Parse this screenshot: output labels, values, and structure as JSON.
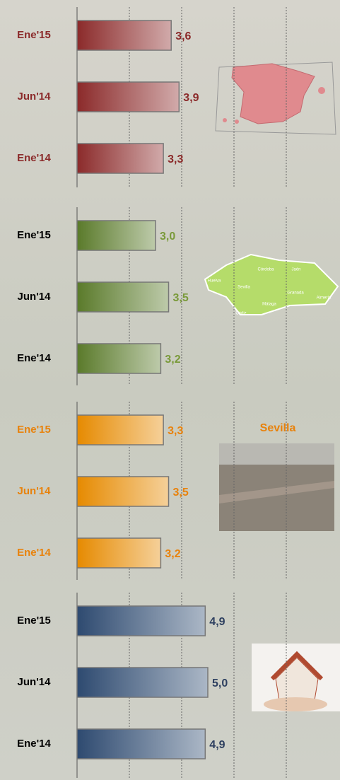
{
  "chart_data": [
    {
      "type": "bar",
      "orientation": "horizontal",
      "categories": [
        "Ene'15",
        "Jun'14",
        "Ene'14"
      ],
      "values": [
        3.6,
        3.9,
        3.3
      ],
      "value_labels": [
        "3,6",
        "3,9",
        "3,3"
      ],
      "color": "#8b2a2a",
      "label_color": "#8b2a2a",
      "value_color": "#8b2a2a",
      "xlim": [
        0,
        10
      ],
      "xticks": [
        0,
        2,
        4,
        6,
        8
      ],
      "grid": true
    },
    {
      "type": "bar",
      "orientation": "horizontal",
      "categories": [
        "Ene'15",
        "Jun'14",
        "Ene'14"
      ],
      "values": [
        3.0,
        3.5,
        3.2
      ],
      "value_labels": [
        "3,0",
        "3,5",
        "3,2"
      ],
      "color": "#5a7a2a",
      "label_color": "#000000",
      "value_color": "#7a9a3a",
      "xlim": [
        0,
        10
      ],
      "xticks": [
        0,
        2,
        4,
        6,
        8
      ],
      "grid": true,
      "map_labels": [
        "Huelva",
        "Sevilla",
        "Córdoba",
        "Jaén",
        "Granada",
        "Almería",
        "Málaga",
        "Cádiz"
      ]
    },
    {
      "type": "bar",
      "orientation": "horizontal",
      "categories": [
        "Ene'15",
        "Jun'14",
        "Ene'14"
      ],
      "values": [
        3.3,
        3.5,
        3.2
      ],
      "value_labels": [
        "3,3",
        "3,5",
        "3,2"
      ],
      "color": "#e68a00",
      "label_color": "#e8820c",
      "value_color": "#e8820c",
      "xlim": [
        0,
        10
      ],
      "xticks": [
        0,
        2,
        4,
        6,
        8
      ],
      "grid": true,
      "annotation": "Sevilla"
    },
    {
      "type": "bar",
      "orientation": "horizontal",
      "categories": [
        "Ene'15",
        "Jun'14",
        "Ene'14"
      ],
      "values": [
        4.9,
        5.0,
        4.9
      ],
      "value_labels": [
        "4,9",
        "5,0",
        "4,9"
      ],
      "color": "#2e4a70",
      "label_color": "#000000",
      "value_color": "#2e4060",
      "xlim": [
        0,
        10
      ],
      "xticks": [
        0,
        2,
        4,
        6,
        8
      ],
      "grid": true
    }
  ]
}
